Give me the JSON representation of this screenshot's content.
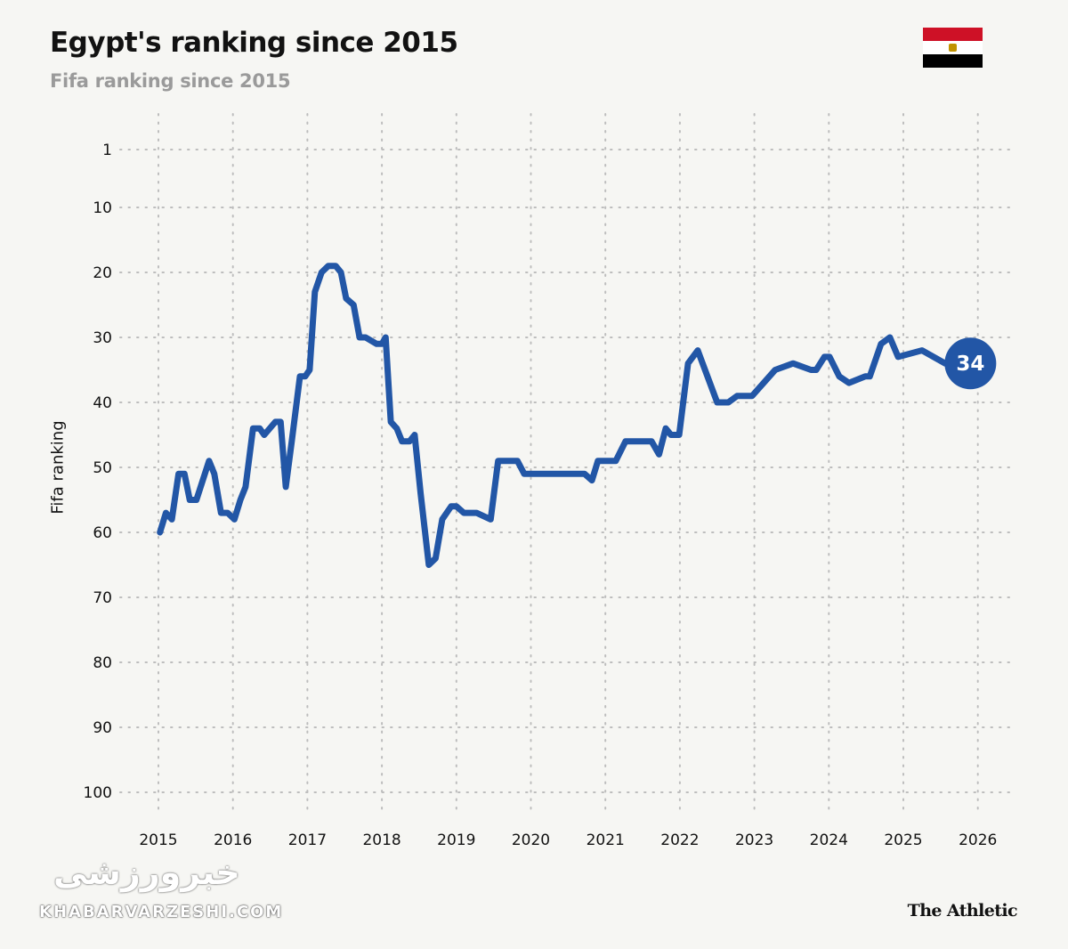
{
  "header": {
    "title": "Egypt's ranking since 2015",
    "subtitle": "Fifa ranking since 2015"
  },
  "flag": {
    "name": "egypt-flag",
    "colors": [
      "#ce1126",
      "#ffffff",
      "#000000"
    ],
    "emblem_color": "#c09300"
  },
  "footer": {
    "brand": "The Athletic",
    "watermark": "KHABARVARZESHI.COM",
    "watermark_logo": "خبرورزشی"
  },
  "chart_data": {
    "type": "line",
    "title": "Egypt's ranking since 2015",
    "subtitle": "Fifa ranking since 2015",
    "xlabel": "",
    "ylabel": "Fifa ranking",
    "xlim": [
      2015,
      2026
    ],
    "ylim": [
      100,
      1
    ],
    "y_inverted": true,
    "grid": true,
    "x_ticks": [
      "2015",
      "2016",
      "2017",
      "2018",
      "2019",
      "2020",
      "2021",
      "2022",
      "2023",
      "2024",
      "2025",
      "2026"
    ],
    "y_ticks": [
      1,
      10,
      20,
      30,
      40,
      50,
      60,
      70,
      80,
      90,
      100
    ],
    "line_color": "#2256a6",
    "end_label": "34",
    "series": [
      {
        "x": [
          2015.02,
          2015.1,
          2015.18,
          2015.27,
          2015.35,
          2015.42,
          2015.51,
          2015.68,
          2015.75,
          2015.84,
          2015.93,
          2016.02,
          2016.1,
          2016.17,
          2016.27,
          2016.36,
          2016.42,
          2016.57,
          2016.64,
          2016.71,
          2016.79,
          2016.9,
          2016.97,
          2017.03,
          2017.1,
          2017.19,
          2017.28,
          2017.38,
          2017.45,
          2017.52,
          2017.62,
          2017.7,
          2017.78,
          2017.93,
          2018.0,
          2018.05,
          2018.12,
          2018.2,
          2018.27,
          2018.37,
          2018.44,
          2018.52,
          2018.63,
          2018.72,
          2018.81,
          2018.93,
          2019.0,
          2019.1,
          2019.27,
          2019.46,
          2019.56,
          2019.82,
          2019.91,
          2020.72,
          2020.82,
          2020.9,
          2021.14,
          2021.27,
          2021.62,
          2021.72,
          2021.81,
          2021.88,
          2021.99,
          2022.11,
          2022.24,
          2022.5,
          2022.65,
          2022.77,
          2022.97,
          2023.28,
          2023.52,
          2023.76,
          2023.83,
          2023.94,
          2024.01,
          2024.14,
          2024.27,
          2024.49,
          2024.55,
          2024.7,
          2024.82,
          2024.93,
          2025.25,
          2025.56,
          2025.9
        ],
        "y": [
          60,
          57,
          58,
          51,
          51,
          55,
          55,
          49,
          51,
          57,
          57,
          58,
          55,
          53,
          44,
          44,
          45,
          43,
          43,
          53,
          46,
          36,
          36,
          35,
          23,
          20,
          19,
          19,
          20,
          24,
          25,
          30,
          30,
          31,
          31,
          30,
          43,
          44,
          46,
          46,
          45,
          54,
          65,
          64,
          58,
          56,
          56,
          57,
          57,
          58,
          49,
          49,
          51,
          51,
          52,
          49,
          49,
          46,
          46,
          48,
          44,
          45,
          45,
          34,
          32,
          40,
          40,
          39,
          39,
          35,
          34,
          35,
          35,
          33,
          33,
          36,
          37,
          36,
          36,
          31,
          30,
          33,
          32,
          34,
          34
        ]
      }
    ]
  }
}
